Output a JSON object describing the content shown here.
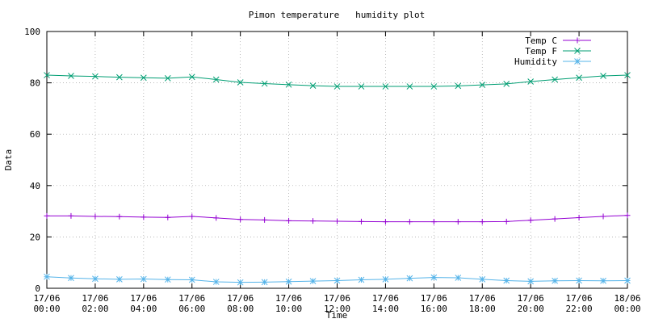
{
  "chart_data": {
    "type": "line",
    "title": "Pimon temperature   humidity plot",
    "xlabel": "Time",
    "ylabel": "Data",
    "categories": [
      "17/06\n00:00",
      null,
      "17/06\n02:00",
      null,
      "17/06\n04:00",
      null,
      "17/06\n06:00",
      null,
      "17/06\n08:00",
      null,
      "17/06\n10:00",
      null,
      "17/06\n12:00",
      null,
      "17/06\n14:00",
      null,
      "17/06\n16:00",
      null,
      "17/06\n18:00",
      null,
      "17/06\n20:00",
      null,
      "17/06\n22:00",
      null,
      "18/06\n00:00"
    ],
    "series": [
      {
        "name": "Temp C",
        "color": "#9400d3",
        "marker": "plus",
        "values": [
          28.2,
          28.2,
          28.0,
          27.9,
          27.7,
          27.6,
          28.0,
          27.4,
          26.8,
          26.6,
          26.3,
          26.2,
          26.1,
          26.0,
          25.9,
          25.9,
          25.9,
          25.9,
          25.9,
          26.0,
          26.5,
          27.0,
          27.5,
          28.0,
          28.4
        ]
      },
      {
        "name": "Temp F",
        "color": "#009e73",
        "marker": "cross",
        "values": [
          83.0,
          82.7,
          82.5,
          82.2,
          82.0,
          81.8,
          82.3,
          81.3,
          80.2,
          79.7,
          79.3,
          78.9,
          78.6,
          78.6,
          78.6,
          78.6,
          78.6,
          78.8,
          79.2,
          79.6,
          80.5,
          81.3,
          82.0,
          82.7,
          83.0
        ]
      },
      {
        "name": "Humidity",
        "color": "#56b4e9",
        "marker": "star",
        "values": [
          4.5,
          4.0,
          3.7,
          3.5,
          3.6,
          3.4,
          3.3,
          2.5,
          2.3,
          2.4,
          2.6,
          2.8,
          3.0,
          3.3,
          3.5,
          3.9,
          4.2,
          4.1,
          3.5,
          3.0,
          2.7,
          2.9,
          3.0,
          2.9,
          3.0
        ]
      }
    ],
    "ylim": [
      0,
      100
    ],
    "yticks": [
      0,
      20,
      40,
      60,
      80,
      100
    ],
    "grid": true,
    "legend": "top right"
  }
}
